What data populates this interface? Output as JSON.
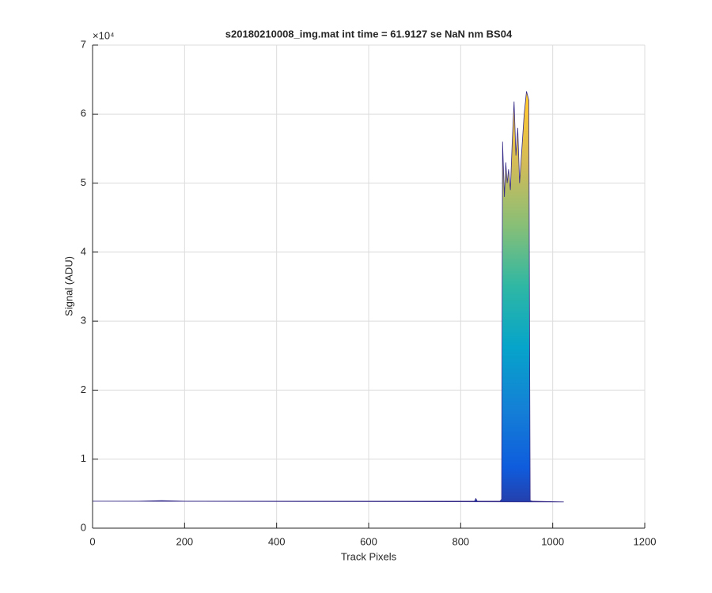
{
  "chart_data": {
    "type": "area",
    "title": "s20180210008_img.mat int time = 61.9127 se  NaN nm BS04",
    "x_label": "Track Pixels",
    "y_label": "Signal (ADU)",
    "y_exponent_label": "×10⁴",
    "xlim": [
      0,
      1200
    ],
    "xticks": [
      0,
      200,
      400,
      600,
      800,
      1000,
      1200
    ],
    "ylim": [
      0,
      70000
    ],
    "yticks": [
      {
        "value": 0,
        "label": "0"
      },
      {
        "value": 10000,
        "label": "1"
      },
      {
        "value": 20000,
        "label": "2"
      },
      {
        "value": 30000,
        "label": "3"
      },
      {
        "value": 40000,
        "label": "4"
      },
      {
        "value": 50000,
        "label": "5"
      },
      {
        "value": 60000,
        "label": "6"
      },
      {
        "value": 70000,
        "label": "7"
      }
    ],
    "grid": true,
    "colormap": [
      "#352a87",
      "#0f5cdd",
      "#1481d6",
      "#06a4ca",
      "#2eb7a4",
      "#87bf77",
      "#d1bb59",
      "#fec832",
      "#f9fb0e"
    ],
    "x": [
      0,
      100,
      150,
      200,
      825,
      830,
      833,
      836,
      885,
      889,
      891,
      895,
      898,
      901,
      904,
      908,
      912,
      916,
      920,
      924,
      928,
      933,
      938,
      943,
      948,
      951,
      956,
      1024
    ],
    "values": [
      3900,
      3900,
      4000,
      3900,
      3900,
      3900,
      4300,
      3900,
      3900,
      4200,
      56000,
      48000,
      53000,
      50000,
      52000,
      49000,
      56000,
      61800,
      54000,
      58000,
      50000,
      55000,
      60000,
      63300,
      62000,
      4000,
      3900,
      3800
    ]
  }
}
